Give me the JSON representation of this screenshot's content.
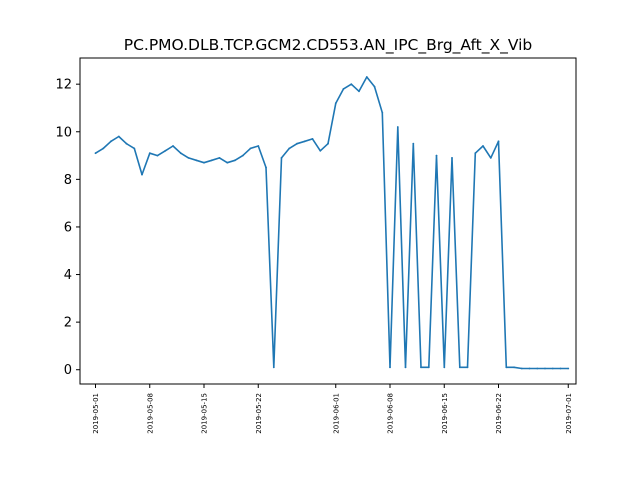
{
  "chart_data": {
    "type": "line",
    "title": "PC.PMO.DLB.TCP.GCM2.CD553.AN_IPC_Brg_Aft_X_Vib",
    "xlabel": "",
    "ylabel": "",
    "xlim": [
      "2019-04-29",
      "2019-07-02"
    ],
    "ylim": [
      -0.6,
      13.1
    ],
    "grid": false,
    "legend": "none",
    "color": "#1f77b4",
    "xticks": [
      "2019-05-01",
      "2019-05-08",
      "2019-05-15",
      "2019-05-22",
      "2019-06-01",
      "2019-06-08",
      "2019-06-15",
      "2019-06-22",
      "2019-07-01"
    ],
    "yticks": [
      0,
      2,
      4,
      6,
      8,
      10,
      12
    ],
    "series": [
      {
        "x": [
          "2019-05-01",
          "2019-05-02",
          "2019-05-03",
          "2019-05-04",
          "2019-05-05",
          "2019-05-06",
          "2019-05-07",
          "2019-05-08",
          "2019-05-09",
          "2019-05-10",
          "2019-05-11",
          "2019-05-12",
          "2019-05-13",
          "2019-05-14",
          "2019-05-15",
          "2019-05-16",
          "2019-05-17",
          "2019-05-18",
          "2019-05-19",
          "2019-05-20",
          "2019-05-21",
          "2019-05-22",
          "2019-05-23",
          "2019-05-24",
          "2019-05-25",
          "2019-05-26",
          "2019-05-27",
          "2019-05-28",
          "2019-05-29",
          "2019-05-30",
          "2019-05-31",
          "2019-06-01",
          "2019-06-02",
          "2019-06-03",
          "2019-06-04",
          "2019-06-05",
          "2019-06-06",
          "2019-06-07",
          "2019-06-08",
          "2019-06-09",
          "2019-06-10",
          "2019-06-11",
          "2019-06-12",
          "2019-06-13",
          "2019-06-14",
          "2019-06-15",
          "2019-06-16",
          "2019-06-17",
          "2019-06-18",
          "2019-06-19",
          "2019-06-20",
          "2019-06-21",
          "2019-06-22",
          "2019-06-23",
          "2019-06-24",
          "2019-06-25",
          "2019-06-26",
          "2019-06-27",
          "2019-06-28",
          "2019-06-29",
          "2019-06-30",
          "2019-07-01"
        ],
        "y": [
          9.1,
          9.3,
          9.6,
          9.8,
          9.5,
          9.3,
          8.2,
          9.1,
          9.0,
          9.2,
          9.4,
          9.1,
          8.9,
          8.8,
          8.7,
          8.8,
          8.9,
          8.7,
          8.8,
          9.0,
          9.3,
          9.4,
          8.5,
          0.1,
          8.9,
          9.3,
          9.5,
          9.6,
          9.7,
          9.2,
          9.5,
          11.2,
          11.8,
          12.0,
          11.7,
          12.3,
          11.9,
          10.8,
          0.1,
          10.2,
          0.1,
          9.5,
          0.1,
          0.1,
          9.0,
          0.1,
          8.9,
          0.1,
          0.1,
          9.1,
          9.4,
          8.9,
          9.6,
          0.1,
          0.1,
          0.05,
          0.05,
          0.05,
          0.05,
          0.05,
          0.05,
          0.05
        ]
      }
    ]
  }
}
